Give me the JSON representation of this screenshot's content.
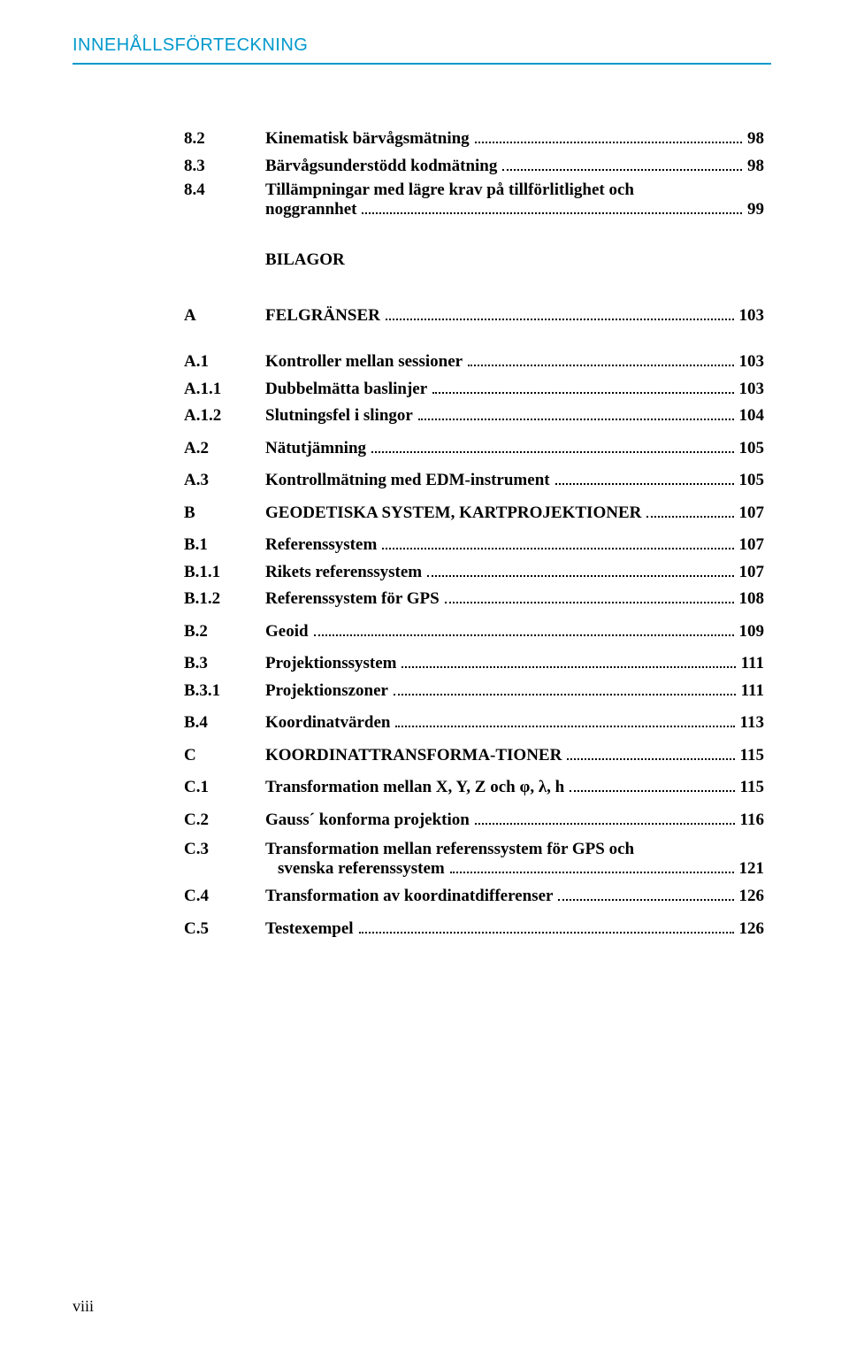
{
  "header": {
    "title": "INNEHÅLLSFÖRTECKNING"
  },
  "toc": [
    {
      "type": "row",
      "num": "8.2",
      "text": "Kinematisk bärvågsmätning",
      "page": "98"
    },
    {
      "type": "row",
      "num": "8.3",
      "text": "Bärvågsunderstödd kodmätning",
      "page": "98"
    },
    {
      "type": "hang",
      "num": "8.4",
      "line1": "Tillämpningar med lägre krav på tillförlitlighet och",
      "line2": "noggrannhet",
      "page": "99"
    },
    {
      "type": "gap",
      "size": "lg"
    },
    {
      "type": "row",
      "num": "",
      "text": "BILAGOR",
      "page": "",
      "nodots": true
    },
    {
      "type": "gap",
      "size": "lg"
    },
    {
      "type": "row",
      "num": "A",
      "text": "FELGRÄNSER",
      "page": "103"
    },
    {
      "type": "gap",
      "size": "md"
    },
    {
      "type": "row",
      "num": "A.1",
      "text": "Kontroller mellan sessioner",
      "page": "103"
    },
    {
      "type": "row",
      "num": "A.1.1",
      "text": "Dubbelmätta baslinjer",
      "page": "103"
    },
    {
      "type": "row",
      "num": "A.1.2",
      "text": "Slutningsfel i slingor",
      "page": "104"
    },
    {
      "type": "gap",
      "size": "sm"
    },
    {
      "type": "row",
      "num": "A.2",
      "text": "Nätutjämning",
      "page": "105"
    },
    {
      "type": "gap",
      "size": "sm"
    },
    {
      "type": "row",
      "num": "A.3",
      "text": "Kontrollmätning med EDM-instrument",
      "page": "105"
    },
    {
      "type": "gap",
      "size": "sm"
    },
    {
      "type": "row",
      "num": "B",
      "text": "GEODETISKA SYSTEM, KARTPROJEKTIONER",
      "page": "107"
    },
    {
      "type": "gap",
      "size": "sm"
    },
    {
      "type": "row",
      "num": "B.1",
      "text": "Referenssystem",
      "page": "107"
    },
    {
      "type": "row",
      "num": "B.1.1",
      "text": "Rikets referenssystem",
      "page": "107"
    },
    {
      "type": "row",
      "num": "B.1.2",
      "text": "Referenssystem för GPS",
      "page": "108"
    },
    {
      "type": "gap",
      "size": "sm"
    },
    {
      "type": "row",
      "num": "B.2",
      "text": "Geoid",
      "page": "109"
    },
    {
      "type": "gap",
      "size": "sm"
    },
    {
      "type": "row",
      "num": "B.3",
      "text": "Projektionssystem",
      "page": "111"
    },
    {
      "type": "row",
      "num": "B.3.1",
      "text": "Projektionszoner",
      "page": "111"
    },
    {
      "type": "gap",
      "size": "sm"
    },
    {
      "type": "row",
      "num": "B.4",
      "text": "Koordinatvärden",
      "page": "113"
    },
    {
      "type": "gap",
      "size": "sm"
    },
    {
      "type": "row",
      "num": "C",
      "text": "KOORDINATTRANSFORMA-TIONER",
      "page": "115"
    },
    {
      "type": "gap",
      "size": "sm"
    },
    {
      "type": "row",
      "num": "C.1",
      "text": "Transformation mellan X, Y, Z och φ, λ, h",
      "page": "115"
    },
    {
      "type": "gap",
      "size": "sm"
    },
    {
      "type": "row",
      "num": "C.2",
      "text": "Gauss´ konforma projektion",
      "page": "116"
    },
    {
      "type": "gap",
      "size": "sm"
    },
    {
      "type": "hang",
      "num": "C.3",
      "line1": "Transformation mellan referenssystem för GPS och",
      "line2": "svenska referenssystem",
      "page": "121",
      "indent2": true
    },
    {
      "type": "gap",
      "size": "sm"
    },
    {
      "type": "row",
      "num": "C.4",
      "text": "Transformation av koordinatdifferenser",
      "page": "126"
    },
    {
      "type": "gap",
      "size": "sm"
    },
    {
      "type": "row",
      "num": "C.5",
      "text": "Testexempel",
      "page": "126"
    }
  ],
  "footer": {
    "pageNumber": "viii"
  }
}
